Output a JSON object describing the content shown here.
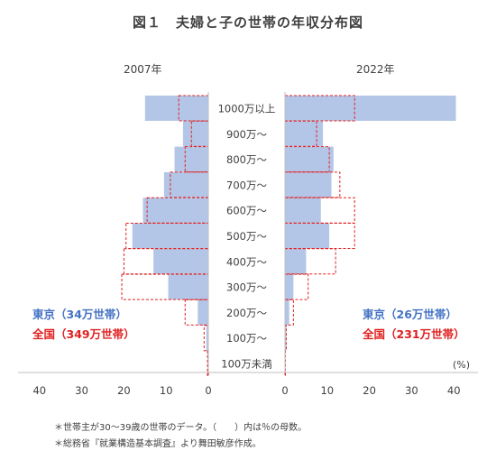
{
  "title": "図１　夫婦と子の世帯の年収分布図",
  "chart_data": {
    "type": "bar",
    "orientation": "horizontal-butterfly",
    "categories": [
      "1000万以上",
      "900万～",
      "800万～",
      "700万～",
      "600万～",
      "500万～",
      "400万～",
      "300万～",
      "200万～",
      "100万～",
      "100万未満"
    ],
    "unit": "(%)",
    "x_ticks_left": [
      "40",
      "30",
      "20",
      "10",
      "0"
    ],
    "x_ticks_right": [
      "0",
      "10",
      "20",
      "30",
      "40"
    ],
    "xlim": [
      0,
      40
    ],
    "panels": [
      {
        "year": "2007年",
        "series": [
          {
            "name": "東京",
            "households": "（34万世帯）",
            "values": [
              15.0,
              6.0,
              8.0,
              10.5,
              15.5,
              18.0,
              13.0,
              9.5,
              2.5,
              0.5,
              0.2
            ]
          },
          {
            "name": "全国",
            "households": "（349万世帯）",
            "values": [
              7.0,
              4.0,
              5.5,
              9.0,
              14.5,
              19.5,
              20.0,
              20.5,
              5.5,
              1.0,
              0.2
            ]
          }
        ]
      },
      {
        "year": "2022年",
        "series": [
          {
            "name": "東京",
            "households": "（26万世帯）",
            "values": [
              40.5,
              9.0,
              11.5,
              11.0,
              8.5,
              10.5,
              5.0,
              2.0,
              1.0,
              0.3,
              0.1
            ]
          },
          {
            "name": "全国",
            "households": "（231万世帯）",
            "values": [
              16.5,
              7.5,
              10.5,
              13.0,
              16.5,
              16.5,
              12.0,
              5.5,
              2.0,
              0.3,
              0.1
            ]
          }
        ]
      }
    ],
    "colors": {
      "tokyo_fill": "#b4c6e7",
      "national_outline": "#e02020",
      "axis": "#bfbfbf"
    }
  },
  "notes": [
    "＊世帯主が30～39歳の世帯のデータ。（　　）内は％の母数。",
    "＊総務省『就業構造基本調査』より舞田敏彦作成。"
  ]
}
